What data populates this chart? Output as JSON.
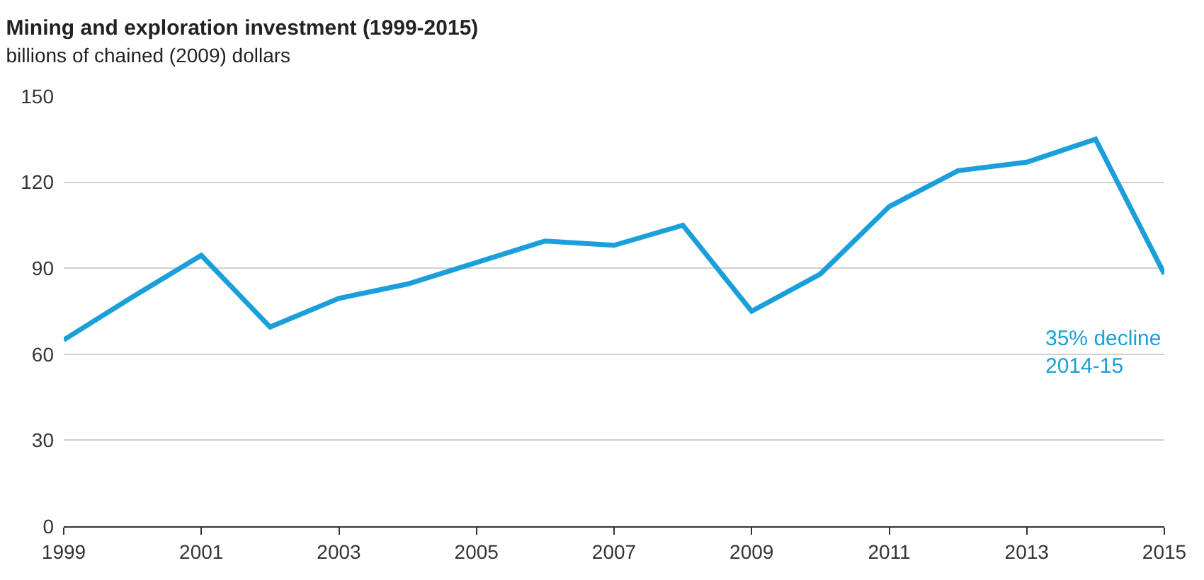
{
  "chart_data": {
    "type": "line",
    "title": "Mining and exploration investment (1999-2015)",
    "subtitle": "billions of chained (2009) dollars",
    "x": [
      1999,
      2000,
      2001,
      2002,
      2003,
      2004,
      2005,
      2006,
      2007,
      2008,
      2009,
      2010,
      2011,
      2012,
      2013,
      2014,
      2015
    ],
    "series": [
      {
        "color": "#1a9fdb",
        "values": [
          65,
          80,
          94.5,
          69.5,
          79.5,
          84.5,
          92,
          99.5,
          98,
          105,
          75,
          88,
          111.5,
          124,
          127,
          135,
          88
        ]
      }
    ],
    "xlim": [
      1999,
      2015
    ],
    "xticks": [
      1999,
      2001,
      2003,
      2005,
      2007,
      2009,
      2011,
      2013,
      2015
    ],
    "ylim": [
      0,
      150
    ],
    "yticks": [
      0,
      30,
      60,
      90,
      120,
      150
    ],
    "grid": "y",
    "marker": "none",
    "line_style": "solid",
    "annotations": [
      "35% decline\n2014-15"
    ]
  }
}
